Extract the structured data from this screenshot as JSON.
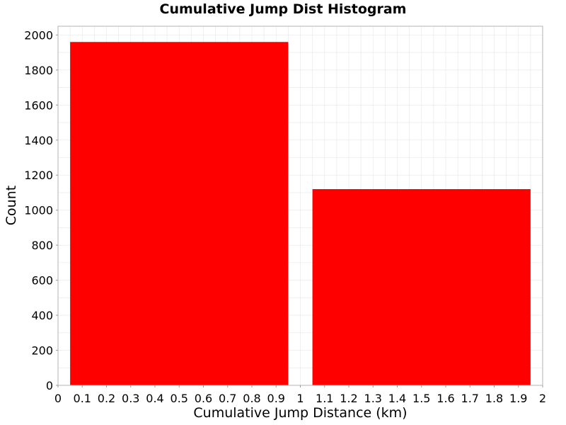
{
  "chart_data": {
    "type": "bar",
    "title": "Cumulative Jump Dist Histogram",
    "xlabel": "Cumulative Jump Distance (km)",
    "ylabel": "Count",
    "xlim": [
      0,
      2
    ],
    "ylim": [
      0,
      2050
    ],
    "x_ticks": [
      "0",
      "0.1",
      "0.2",
      "0.3",
      "0.4",
      "0.5",
      "0.6",
      "0.7",
      "0.8",
      "0.9",
      "1",
      "1.1",
      "1.2",
      "1.3",
      "1.4",
      "1.5",
      "1.6",
      "1.7",
      "1.8",
      "1.9",
      "2"
    ],
    "y_ticks": [
      "0",
      "200",
      "400",
      "600",
      "800",
      "1000",
      "1200",
      "1400",
      "1600",
      "1800",
      "2000"
    ],
    "bins": [
      {
        "x_start": 0.05,
        "x_end": 0.95,
        "value": 1960
      },
      {
        "x_start": 1.05,
        "x_end": 1.95,
        "value": 1120
      }
    ],
    "grid": true,
    "bar_color": "#ff0000",
    "grid_color": "#e6e6e6",
    "frame_color": "#b3b3b3"
  }
}
